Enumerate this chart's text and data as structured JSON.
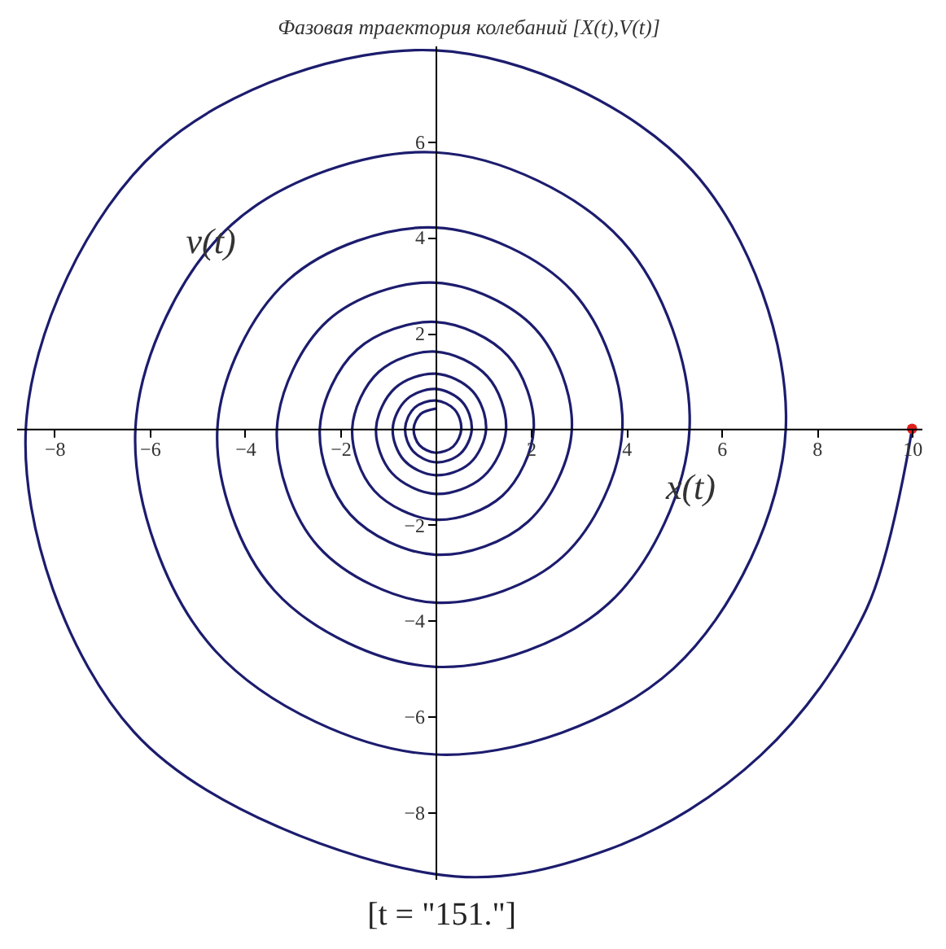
{
  "chart_data": {
    "type": "line",
    "title": "Фазовая траектория колебаний [X(t),V(t)]",
    "xlabel": "x(t)",
    "ylabel": "v(t)",
    "annotations": [
      "[t = \"151.\"]"
    ],
    "xlim": [
      -8.8,
      10.2
    ],
    "ylim": [
      -9.4,
      8.0
    ],
    "xticks": [
      -8,
      -6,
      -4,
      -2,
      2,
      4,
      6,
      8,
      10
    ],
    "yticks": [
      -8,
      -6,
      -4,
      -2,
      2,
      4,
      6
    ],
    "grid": false,
    "series": [
      {
        "color": "#1c1c6e",
        "x": [
          10,
          9.05,
          6.82,
          3.64,
          0,
          -6.33,
          -8.6,
          -5.83,
          0,
          5.39,
          7.35,
          5.0,
          0,
          -4.63,
          -6.3,
          -4.27,
          0,
          3.92,
          5.33,
          3.64,
          0,
          -3.38,
          -4.58,
          -3.1,
          0,
          2.87,
          3.92,
          2.67,
          0,
          -2.46,
          -3.33,
          -2.26,
          0,
          2.09,
          2.86,
          1.94,
          0,
          -1.79,
          -2.43,
          -1.65,
          0,
          1.52,
          2.06,
          1.4,
          0,
          -1.29,
          -1.75,
          -1.19,
          0,
          1.09,
          1.48,
          1.0,
          0,
          -0.92,
          -1.25,
          -0.85,
          0,
          0.78,
          1.06,
          0.72,
          0,
          -0.66,
          -0.9,
          -0.61,
          0,
          0.56,
          0.76,
          0.52,
          0,
          -0.47,
          -0.64,
          -0.44,
          0,
          0.4,
          0.54,
          0.37,
          0,
          -0.34,
          -0.46,
          -0.31,
          0
        ],
        "values": [
          0,
          -3.75,
          -6.82,
          -8.78,
          -9.3,
          -6.33,
          0,
          5.83,
          7.9,
          5.39,
          0,
          -5.0,
          -6.8,
          -4.63,
          0,
          4.27,
          5.77,
          3.92,
          0,
          -3.64,
          -4.97,
          -3.38,
          0,
          3.1,
          4.2,
          2.87,
          0,
          -2.67,
          -3.63,
          -2.46,
          0,
          2.26,
          3.05,
          2.09,
          0,
          -1.94,
          -2.63,
          -1.79,
          0,
          1.65,
          2.23,
          1.52,
          0,
          -1.4,
          -1.9,
          -1.29,
          0,
          1.19,
          1.61,
          1.09,
          0,
          -1.0,
          -1.36,
          -0.92,
          0,
          0.85,
          1.15,
          0.78,
          0,
          -0.72,
          -0.97,
          -0.66,
          0,
          0.61,
          0.83,
          0.56,
          0,
          -0.52,
          -0.7,
          -0.47,
          0,
          0.44,
          0.59,
          0.4,
          0,
          -0.37,
          -0.5,
          -0.34,
          0,
          0.31,
          0.42
        ]
      },
      {
        "type": "scatter",
        "color": "#e0201c",
        "x": [
          10
        ],
        "values": [
          0
        ]
      }
    ]
  }
}
